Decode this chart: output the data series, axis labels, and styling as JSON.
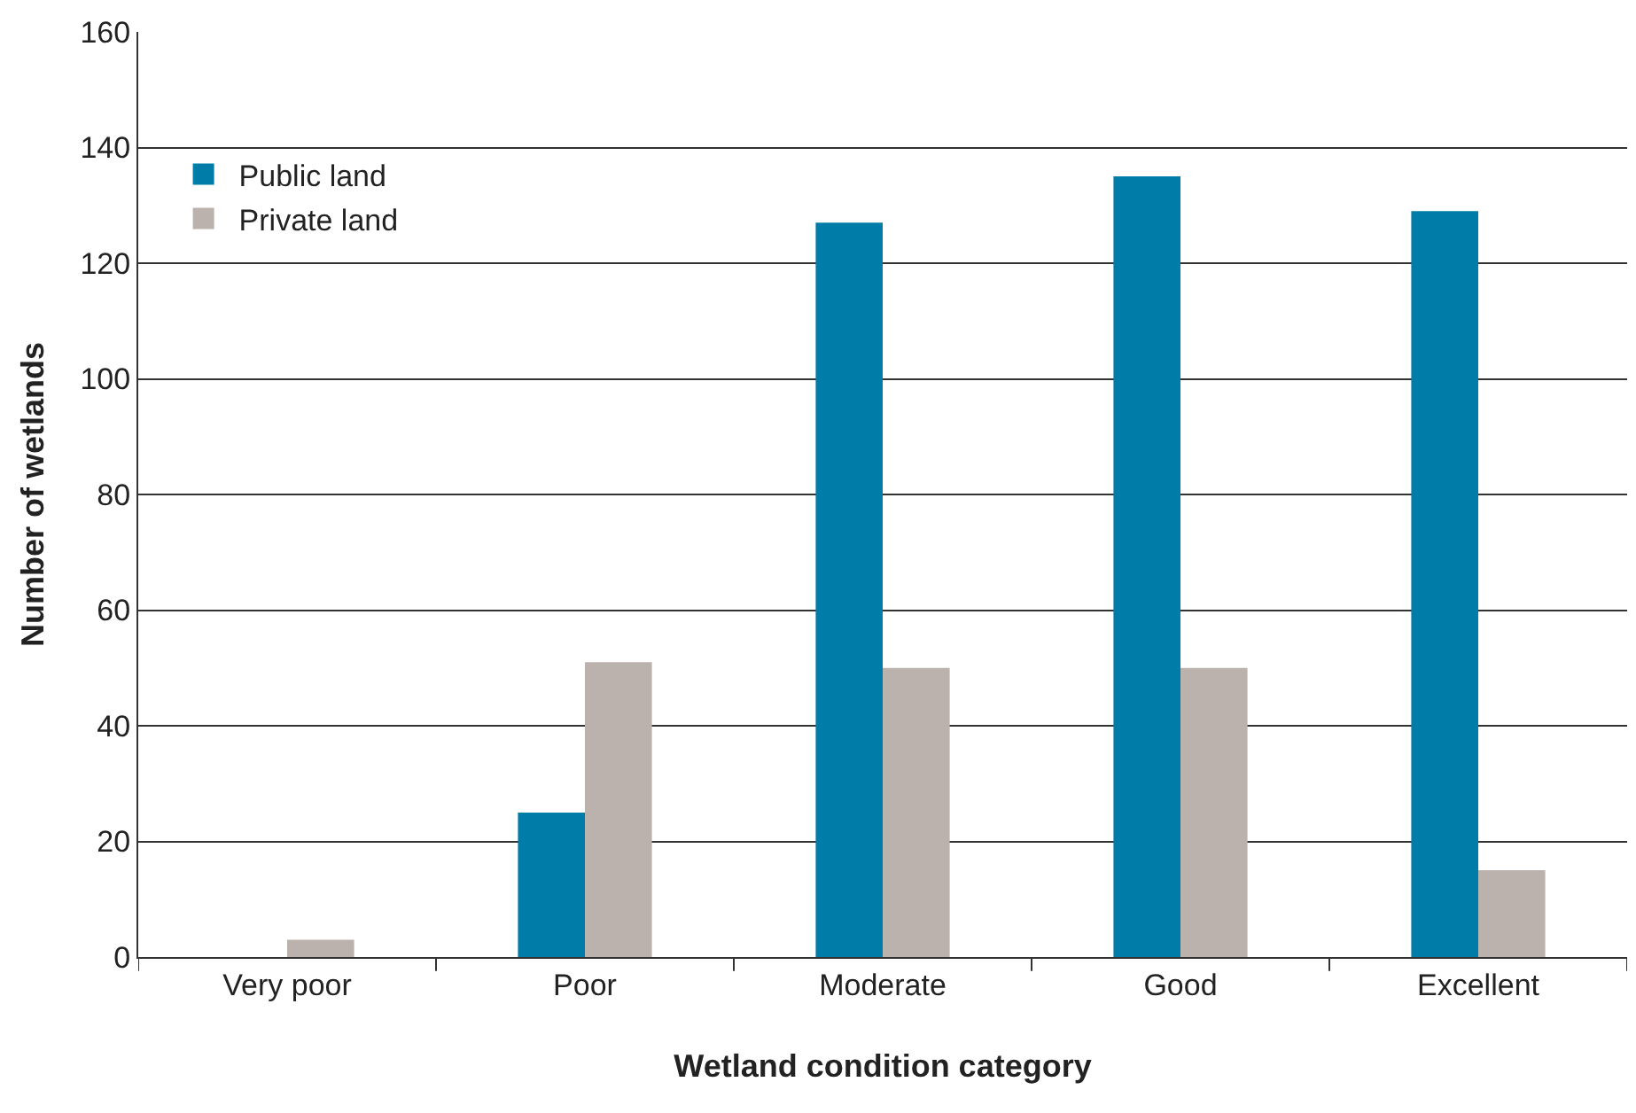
{
  "chart_data": {
    "type": "bar",
    "xlabel": "Wetland condition category",
    "ylabel": "Number of wetlands",
    "categories": [
      "Very poor",
      "Poor",
      "Moderate",
      "Good",
      "Excellent"
    ],
    "series": [
      {
        "name": "Public land",
        "color": "#007ca8",
        "values": [
          null,
          25,
          127,
          135,
          129
        ]
      },
      {
        "name": "Private land",
        "color": "#bcb2ad",
        "values": [
          3,
          51,
          50,
          50,
          15
        ]
      }
    ],
    "ylim": [
      0,
      160
    ],
    "yticks": [
      0,
      20,
      40,
      60,
      80,
      100,
      120,
      140,
      160
    ],
    "grid": "y",
    "legend": "top left"
  }
}
